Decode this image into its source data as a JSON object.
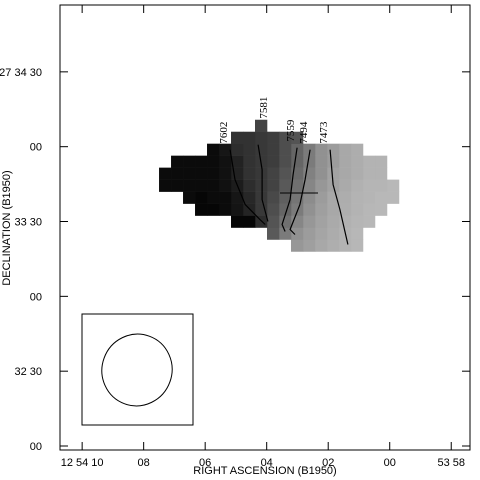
{
  "chart_data": {
    "type": "image",
    "x_label": "RIGHT ASCENSION (B1950)",
    "y_label": "DECLINATION (B1950)",
    "xlim": [
      46450.72,
      46437.39
    ],
    "ylim": [
      99118.4,
      99296.8
    ],
    "xticks": [
      {
        "value": 46450,
        "label": "12 54 10"
      },
      {
        "value": 46448,
        "label": "08"
      },
      {
        "value": 46446,
        "label": "06"
      },
      {
        "value": 46444,
        "label": "04"
      },
      {
        "value": 46442,
        "label": "02"
      },
      {
        "value": 46440,
        "label": "00"
      },
      {
        "value": 46438,
        "label": "53 58"
      }
    ],
    "yticks": [
      {
        "value": 99270,
        "label": "27 34 30"
      },
      {
        "value": 99240,
        "label": "00"
      },
      {
        "value": 99210,
        "label": "33 30"
      },
      {
        "value": 99180,
        "label": "00"
      },
      {
        "value": 99150,
        "label": "32 30"
      },
      {
        "value": 99120,
        "label": "00"
      }
    ],
    "clim": [
      7460,
      7630
    ],
    "image": {
      "x0": 46447.5,
      "dx": -0.39,
      "y0": 99250.8,
      "dy": -4.8,
      "rows": [
        [
          null,
          null,
          null,
          null,
          null,
          null,
          null,
          null,
          7570,
          null,
          null,
          null,
          null,
          null,
          null,
          null,
          null,
          null,
          null,
          null
        ],
        [
          null,
          null,
          null,
          null,
          null,
          null,
          7585,
          7585,
          7580,
          7575,
          7560,
          7555,
          null,
          null,
          null,
          null,
          null,
          null,
          null,
          null
        ],
        [
          null,
          null,
          null,
          null,
          7620,
          7610,
          7590,
          7585,
          7580,
          7575,
          7560,
          7540,
          7520,
          7500,
          7490,
          7480,
          7475,
          null,
          null,
          null
        ],
        [
          null,
          7620,
          7620,
          7620,
          7620,
          7615,
          7600,
          7585,
          7580,
          7575,
          7560,
          7540,
          7520,
          7500,
          7490,
          7480,
          7475,
          7470,
          7470,
          null
        ],
        [
          7620,
          7620,
          7620,
          7620,
          7620,
          7615,
          7600,
          7585,
          7580,
          7570,
          7555,
          7535,
          7515,
          7500,
          7485,
          7480,
          7475,
          7470,
          7470,
          null
        ],
        [
          7620,
          7620,
          7620,
          7620,
          7620,
          7615,
          7605,
          7590,
          7580,
          7570,
          7550,
          7530,
          7510,
          7495,
          7485,
          7478,
          7472,
          7468,
          7468,
          7465
        ],
        [
          null,
          null,
          7620,
          7625,
          7620,
          7620,
          7610,
          7595,
          7580,
          7565,
          7545,
          7525,
          7505,
          7490,
          7480,
          7475,
          7470,
          7468,
          7465,
          7465
        ],
        [
          null,
          null,
          null,
          7625,
          7625,
          7620,
          7612,
          7598,
          7580,
          7560,
          7540,
          7520,
          7500,
          7488,
          7480,
          7474,
          7470,
          7466,
          7465,
          null
        ],
        [
          null,
          null,
          null,
          null,
          null,
          null,
          7625,
          7625,
          7590,
          7555,
          7530,
          7510,
          7495,
          7485,
          7478,
          7472,
          7468,
          7466,
          null,
          null
        ],
        [
          null,
          null,
          null,
          null,
          null,
          null,
          null,
          null,
          null,
          7550,
          7520,
          7500,
          7490,
          7482,
          7476,
          7470,
          7466,
          null,
          null,
          null
        ],
        [
          null,
          null,
          null,
          null,
          null,
          null,
          null,
          null,
          null,
          null,
          null,
          7495,
          7488,
          7480,
          7474,
          7470,
          7466,
          null,
          null,
          null
        ]
      ]
    },
    "contours": [
      {
        "level": 7602,
        "x": [
          46445.19,
          46445.03,
          46444.7,
          46444.22,
          46444.05
        ],
        "y": [
          99238.8,
          99226.8,
          99216.8,
          99210.8,
          99208.8
        ]
      },
      {
        "level": 7581,
        "x": [
          46444.28,
          46444.15,
          46444.15,
          46443.96
        ],
        "y": [
          99240.8,
          99230.8,
          99218.8,
          99210
        ]
      },
      {
        "level": 7559,
        "x": [
          46443.01,
          46443.14,
          46443.24,
          46443.5,
          46443.4
        ],
        "y": [
          99239.6,
          99228.8,
          99218.8,
          99208.8,
          99206
        ]
      },
      {
        "level": 7494,
        "x": [
          46442.59,
          46442.75,
          46442.92,
          46443.24,
          46443.08
        ],
        "y": [
          99238.8,
          99226.8,
          99216.8,
          99206.8,
          99204.8
        ]
      },
      {
        "level": 7473,
        "x": [
          46441.94,
          46441.84,
          46441.62,
          46441.36
        ],
        "y": [
          99238.8,
          99224.8,
          99214.8,
          99200.8
        ]
      }
    ]
  }
}
